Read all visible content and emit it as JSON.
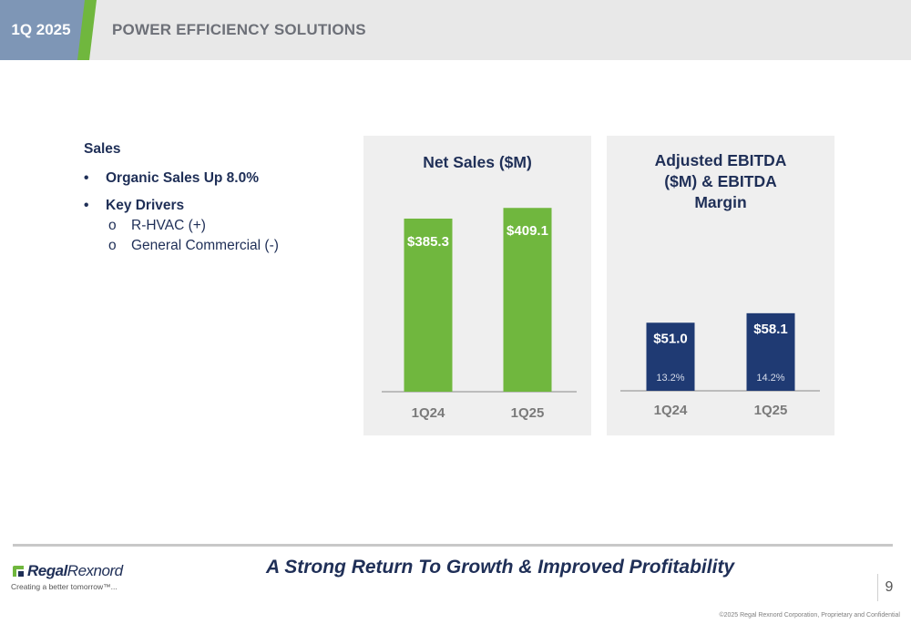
{
  "header": {
    "period_badge": "1Q 2025",
    "title": "POWER EFFICIENCY SOLUTIONS",
    "colors": {
      "badge": "#7e96b6",
      "accent": "#70b73e",
      "bar": "#e8e8e8",
      "title_text": "#6d7078"
    }
  },
  "bullets": {
    "heading": "Sales",
    "items": [
      {
        "marker": "•",
        "text": "Organic Sales Up 8.0%"
      },
      {
        "marker": "•",
        "text": "Key Drivers"
      }
    ],
    "sub_items": [
      {
        "marker": "o",
        "text": "R-HVAC (+)"
      },
      {
        "marker": "o",
        "text": "General Commercial (-)"
      }
    ]
  },
  "chart_data": [
    {
      "type": "bar",
      "title": "Net Sales ($M)",
      "categories": [
        "1Q24",
        "1Q25"
      ],
      "values": [
        385.3,
        409.1
      ],
      "data_labels": [
        "$385.3",
        "$409.1"
      ],
      "color": "#70b73e",
      "ylim": [
        0,
        440
      ]
    },
    {
      "type": "bar",
      "title": "Adjusted EBITDA ($M) & EBITDA Margin",
      "title_lines": [
        "Adjusted EBITDA",
        "($M) & EBITDA",
        "Margin"
      ],
      "categories": [
        "1Q24",
        "1Q25"
      ],
      "values": [
        51.0,
        58.1
      ],
      "data_labels": [
        "$51.0",
        "$58.1"
      ],
      "margins": [
        "13.2%",
        "14.2%"
      ],
      "color": "#1f3a73",
      "ylim": [
        0,
        65.5
      ]
    }
  ],
  "footer": {
    "tagline": "A Strong Return To Growth & Improved Profitability",
    "logo_text_bold": "Regal",
    "logo_text_light": "Rexnord",
    "logo_slogan": "Creating a better tomorrow™...",
    "page_number": "9",
    "copyright": "©2025 Regal Rexnord Corporation, Proprietary and Confidential"
  }
}
